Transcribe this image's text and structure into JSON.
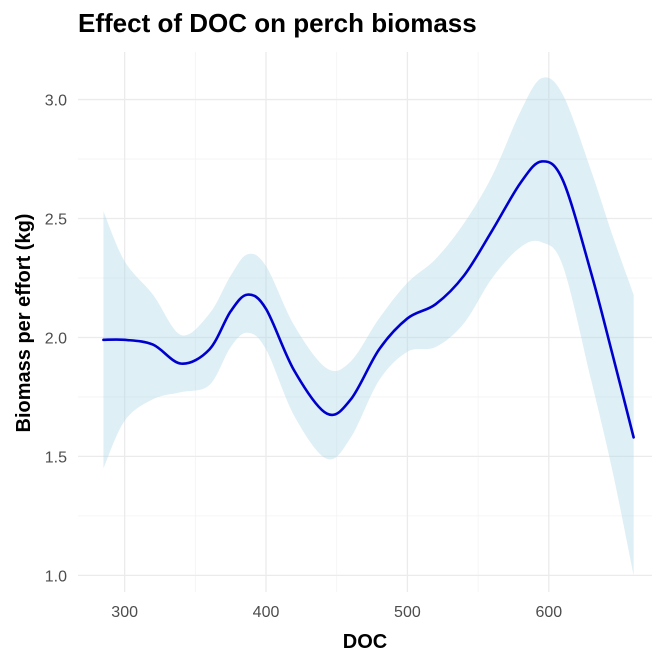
{
  "chart_data": {
    "type": "line",
    "title": "Effect of DOC on perch biomass",
    "xlabel": "DOC",
    "ylabel": "Biomass per effort (kg)",
    "xlim": [
      267,
      673
    ],
    "ylim": [
      0.93,
      3.2
    ],
    "x_ticks": [
      300,
      400,
      500,
      600
    ],
    "y_ticks": [
      1.0,
      1.5,
      2.0,
      2.5,
      3.0
    ],
    "x_tick_labels": [
      "300",
      "400",
      "500",
      "600"
    ],
    "y_tick_labels": [
      "1.0",
      "1.5",
      "2.0",
      "2.5",
      "3.0"
    ],
    "grid": true,
    "line_color": "#0000cd",
    "band_color": "#add8e6",
    "band_opacity": 0.4,
    "series": [
      {
        "x": [
          285,
          300,
          320,
          340,
          360,
          375,
          387,
          400,
          420,
          443,
          460,
          480,
          500,
          520,
          540,
          560,
          580,
          595,
          610,
          630,
          645,
          660
        ],
        "y": [
          1.99,
          1.99,
          1.97,
          1.89,
          1.95,
          2.11,
          2.18,
          2.12,
          1.86,
          1.68,
          1.74,
          1.95,
          2.08,
          2.14,
          2.26,
          2.45,
          2.65,
          2.74,
          2.66,
          2.27,
          1.93,
          1.58
        ],
        "lower": [
          1.45,
          1.65,
          1.74,
          1.77,
          1.8,
          1.96,
          2.02,
          1.95,
          1.67,
          1.49,
          1.58,
          1.82,
          1.94,
          1.96,
          2.06,
          2.25,
          2.38,
          2.4,
          2.3,
          1.82,
          1.44,
          1.0
        ],
        "upper": [
          2.53,
          2.32,
          2.18,
          2.01,
          2.1,
          2.26,
          2.35,
          2.3,
          2.05,
          1.87,
          1.9,
          2.08,
          2.23,
          2.33,
          2.48,
          2.68,
          2.95,
          3.09,
          3.02,
          2.7,
          2.43,
          2.18
        ]
      }
    ]
  }
}
